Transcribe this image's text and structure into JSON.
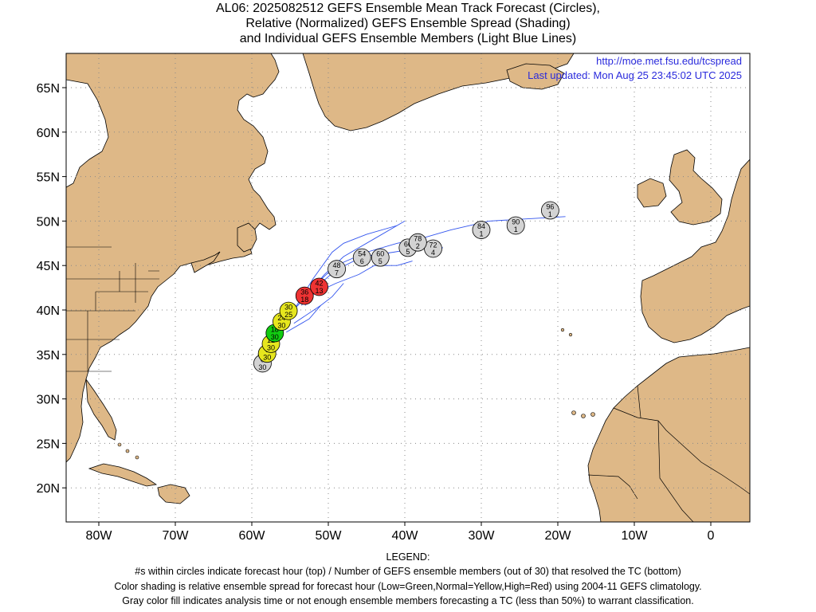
{
  "titles": [
    "AL06: 2025082512 GEFS Ensemble Mean Track Forecast (Circles),",
    "Relative (Normalized) GEFS Ensemble Spread (Shading)",
    "and Individual GEFS Ensemble Members (Light Blue Lines)"
  ],
  "links": {
    "url": "http://moe.met.fsu.edu/tcspread",
    "updated": "Last updated: Mon Aug 25 23:45:02 UTC 2025"
  },
  "lat_labels": [
    "65N",
    "60N",
    "55N",
    "50N",
    "45N",
    "40N",
    "35N",
    "30N",
    "25N",
    "20N"
  ],
  "lon_labels": [
    "80W",
    "70W",
    "60W",
    "50W",
    "40W",
    "30W",
    "20W",
    "10W",
    "0"
  ],
  "legend": {
    "heading": "LEGEND:",
    "lines": [
      "#s within circles indicate forecast hour (top) / Number of GEFS ensemble members (out of 30) that resolved the TC (bottom)",
      "Color shading is relative ensemble spread for forecast hour (Low=Green,Normal=Yellow,High=Red) using 2004-11 GEFS climatology.",
      "Gray color fill indicates analysis time or not enough ensemble members forecasting a TC (less than 50%) to warrant classification."
    ]
  },
  "colors": {
    "land": "#deb887",
    "ocean": "#ffffff",
    "member_track": "#3355ee",
    "green": "#11cc11",
    "yellow": "#e6e61e",
    "red": "#ee3333",
    "gray": "#d3d3d3",
    "link": "#2a2adc"
  },
  "track_points": [
    {
      "hour": "0",
      "members": "30",
      "lat": 34.0,
      "lon": -58.6,
      "spread": "gray"
    },
    {
      "hour": "6",
      "members": "30",
      "lat": 35.1,
      "lon": -58.0,
      "spread": "yellow"
    },
    {
      "hour": "12",
      "members": "30",
      "lat": 36.2,
      "lon": -57.5,
      "spread": "yellow"
    },
    {
      "hour": "18",
      "members": "30",
      "lat": 37.4,
      "lon": -57.0,
      "spread": "green"
    },
    {
      "hour": "24",
      "members": "30",
      "lat": 38.7,
      "lon": -56.1,
      "spread": "yellow"
    },
    {
      "hour": "30",
      "members": "25",
      "lat": 39.9,
      "lon": -55.2,
      "spread": "yellow"
    },
    {
      "hour": "36",
      "members": "18",
      "lat": 41.6,
      "lon": -53.1,
      "spread": "red"
    },
    {
      "hour": "42",
      "members": "13",
      "lat": 42.6,
      "lon": -51.2,
      "spread": "red"
    },
    {
      "hour": "48",
      "members": "7",
      "lat": 44.6,
      "lon": -48.9,
      "spread": "gray"
    },
    {
      "hour": "54",
      "members": "6",
      "lat": 45.9,
      "lon": -45.6,
      "spread": "gray"
    },
    {
      "hour": "60",
      "members": "5",
      "lat": 45.9,
      "lon": -43.2,
      "spread": "gray"
    },
    {
      "hour": "66",
      "members": "5",
      "lat": 47.0,
      "lon": -39.6,
      "spread": "gray"
    },
    {
      "hour": "72",
      "members": "4",
      "lat": 46.9,
      "lon": -36.3,
      "spread": "gray"
    },
    {
      "hour": "78",
      "members": "2",
      "lat": 47.6,
      "lon": -38.3,
      "spread": "gray"
    },
    {
      "hour": "84",
      "members": "1",
      "lat": 49.0,
      "lon": -30.0,
      "spread": "gray"
    },
    {
      "hour": "90",
      "members": "1",
      "lat": 49.5,
      "lon": -25.5,
      "spread": "gray"
    },
    {
      "hour": "96",
      "members": "1",
      "lat": 51.2,
      "lon": -21.0,
      "spread": "gray"
    }
  ],
  "member_tracks": [
    [
      [
        -54.0,
        40.5
      ],
      [
        -52.0,
        42.5
      ],
      [
        -50.5,
        44.0
      ],
      [
        -48.0,
        46.0
      ],
      [
        -44.0,
        48.0
      ],
      [
        -40.0,
        50.0
      ]
    ],
    [
      [
        -53.5,
        40.5
      ],
      [
        -51.5,
        43.0
      ],
      [
        -49.0,
        45.0
      ],
      [
        -45.0,
        46.5
      ],
      [
        -41.0,
        47.5
      ],
      [
        -38.0,
        48.0
      ],
      [
        -34.0,
        49.0
      ],
      [
        -29.0,
        50.0
      ],
      [
        -25.0,
        50.2
      ],
      [
        -19.0,
        50.5
      ]
    ],
    [
      [
        -54.5,
        40.0
      ],
      [
        -52.0,
        43.5
      ],
      [
        -49.5,
        46.5
      ],
      [
        -48.0,
        47.5
      ],
      [
        -45.0,
        48.5
      ],
      [
        -41.0,
        49.5
      ]
    ],
    [
      [
        -53.0,
        40.5
      ],
      [
        -51.0,
        43.0
      ],
      [
        -49.0,
        44.5
      ],
      [
        -45.5,
        46.0
      ],
      [
        -41.5,
        46.5
      ],
      [
        -38.0,
        47.0
      ],
      [
        -35.0,
        47.0
      ]
    ],
    [
      [
        -55.0,
        39.5
      ],
      [
        -53.5,
        41.0
      ],
      [
        -51.5,
        42.0
      ],
      [
        -49.0,
        43.0
      ],
      [
        -46.0,
        44.0
      ],
      [
        -44.0,
        45.0
      ],
      [
        -41.0,
        45.0
      ],
      [
        -39.0,
        45.5
      ]
    ],
    [
      [
        -54.5,
        38.5
      ],
      [
        -51.0,
        40.5
      ],
      [
        -49.5,
        41.5
      ],
      [
        -48.0,
        43.0
      ]
    ],
    [
      [
        -55.5,
        37.5
      ],
      [
        -52.5,
        39.0
      ],
      [
        -51.0,
        40.5
      ]
    ]
  ]
}
